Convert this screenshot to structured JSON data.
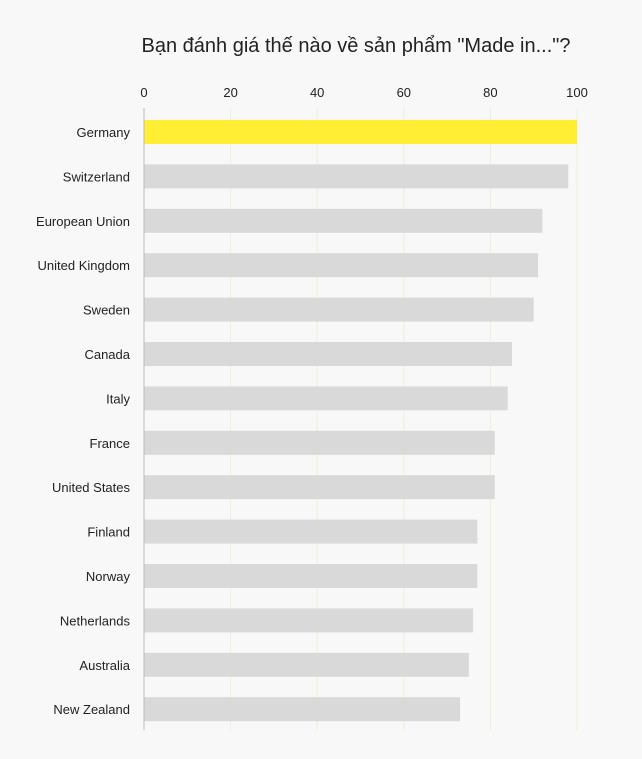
{
  "chart_data": {
    "type": "bar",
    "orientation": "horizontal",
    "title": "Bạn đánh giá thế nào về sản phẩm \"Made in...\"?",
    "xlabel": "",
    "ylabel": "",
    "xlim": [
      0,
      100
    ],
    "ticks": [
      0,
      20,
      40,
      60,
      80,
      100
    ],
    "tick_labels": [
      "0",
      "20",
      "40",
      "60",
      "80",
      "100"
    ],
    "grid": true,
    "legend": "none",
    "categories": [
      "Germany",
      "Switzerland",
      "European Union",
      "United Kingdom",
      "Sweden",
      "Canada",
      "Italy",
      "France",
      "United States",
      "Finland",
      "Norway",
      "Netherlands",
      "Australia",
      "New Zealand"
    ],
    "values": [
      100,
      98,
      92,
      91,
      90,
      85,
      84,
      81,
      81,
      77,
      77,
      76,
      75,
      73
    ],
    "highlight_category": "Germany",
    "colors": {
      "highlight": "#ffee33",
      "bar": "#d9d9d9",
      "grid": "#f0efcf",
      "axis": "#bbbbbb",
      "background": "#f8f8f8"
    }
  }
}
